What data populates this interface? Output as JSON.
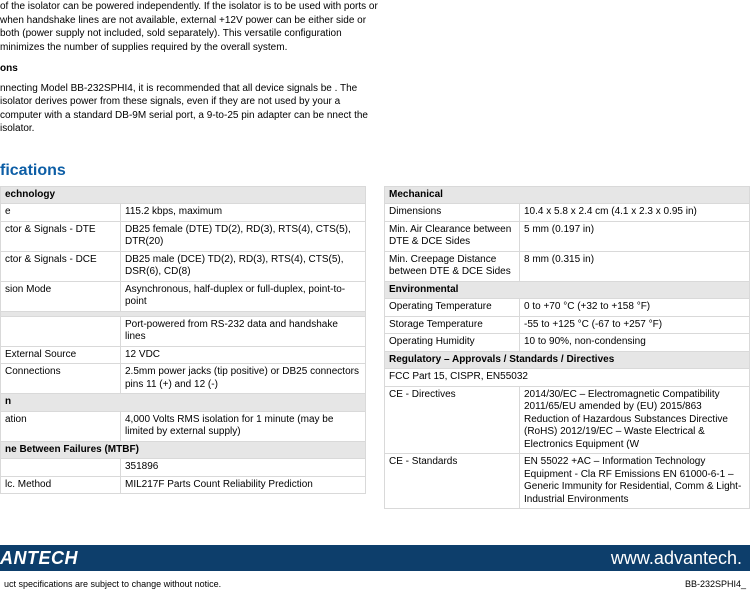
{
  "top": {
    "p1": "of the isolator can be powered independently. If the isolator is to be used with ports or when handshake lines are not available, external +12V power can be either side or both (power supply not included, sold separately). This versatile configuration minimizes the number of supplies required by the overall system.",
    "subhead": "ons",
    "p2": "nnecting Model BB-232SPHI4, it is recommended that all device signals be . The isolator derives power from these signals, even if they are not used by your a computer with a standard DB-9M serial port, a 9-to-25 pin adapter can be nnect the isolator."
  },
  "specTitle": "fications",
  "left": {
    "sec1": "echnology",
    "r1l": "e",
    "r1v": "115.2 kbps, maximum",
    "r2l": "ctor & Signals - DTE",
    "r2v": "DB25 female (DTE)\nTD(2), RD(3), RTS(4), CTS(5), DTR(20)",
    "r3l": "ctor & Signals - DCE",
    "r3v": "DB25 male (DCE)\nTD(2), RD(3), RTS(4), CTS(5), DSR(6), CD(8)",
    "r4l": "sion Mode",
    "r4v": "Asynchronous, half-duplex or full-duplex, point-to-point",
    "sec2": "",
    "r5v": "Port-powered from RS-232 data and handshake lines",
    "r6l": "External Source",
    "r6v": "12 VDC",
    "r7l": "Connections",
    "r7v": "2.5mm power jacks (tip positive) or\nDB25 connectors pins 11 (+) and 12 (-)",
    "sec3": "n",
    "r8l": "ation",
    "r8v": "4,000 Volts RMS isolation for 1 minute\n(may be limited by external supply)",
    "sec4": "ne Between Failures (MTBF)",
    "r9v": "351896",
    "r10l": "lc. Method",
    "r10v": "MIL217F Parts Count Reliability Prediction"
  },
  "right": {
    "sec1": "Mechanical",
    "r1l": "Dimensions",
    "r1v": "10.4 x 5.8 x 2.4 cm  (4.1 x 2.3 x 0.95 in)",
    "r2l": "Min. Air Clearance between DTE & DCE Sides",
    "r2v": "5 mm  (0.197 in)",
    "r3l": "Min. Creepage Distance between DTE & DCE Sides",
    "r3v": "8 mm  (0.315 in)",
    "sec2": "Environmental",
    "r4l": "Operating Temperature",
    "r4v": "0 to +70 °C  (+32 to +158 °F)",
    "r5l": "Storage Temperature",
    "r5v": "-55 to +125 °C  (-67 to +257 °F)",
    "r6l": "Operating Humidity",
    "r6v": "10 to 90%, non-condensing",
    "sec3": "Regulatory – Approvals / Standards / Directives",
    "r7": "FCC Part 15, CISPR, EN55032",
    "r8l": "CE - Directives",
    "r8v": "2014/30/EC – Electromagnetic Compatibility\n2011/65/EU amended by (EU) 2015/863 Reduction of Hazardous Substances Directive (RoHS)\n2012/19/EC – Waste Electrical & Electronics Equipment (W",
    "r9l": "CE - Standards",
    "r9v": "EN 55022 +AC – Information Technology Equipment - Cla\nRF Emissions\nEN 61000-6-1 – Generic Immunity for Residential, Comm & Light-Industrial Environments"
  },
  "footer": {
    "brand": "ANTECH",
    "url": "www.advantech.",
    "left": "uct specifications are subject to change without notice.",
    "right": "BB-232SPHI4_"
  }
}
